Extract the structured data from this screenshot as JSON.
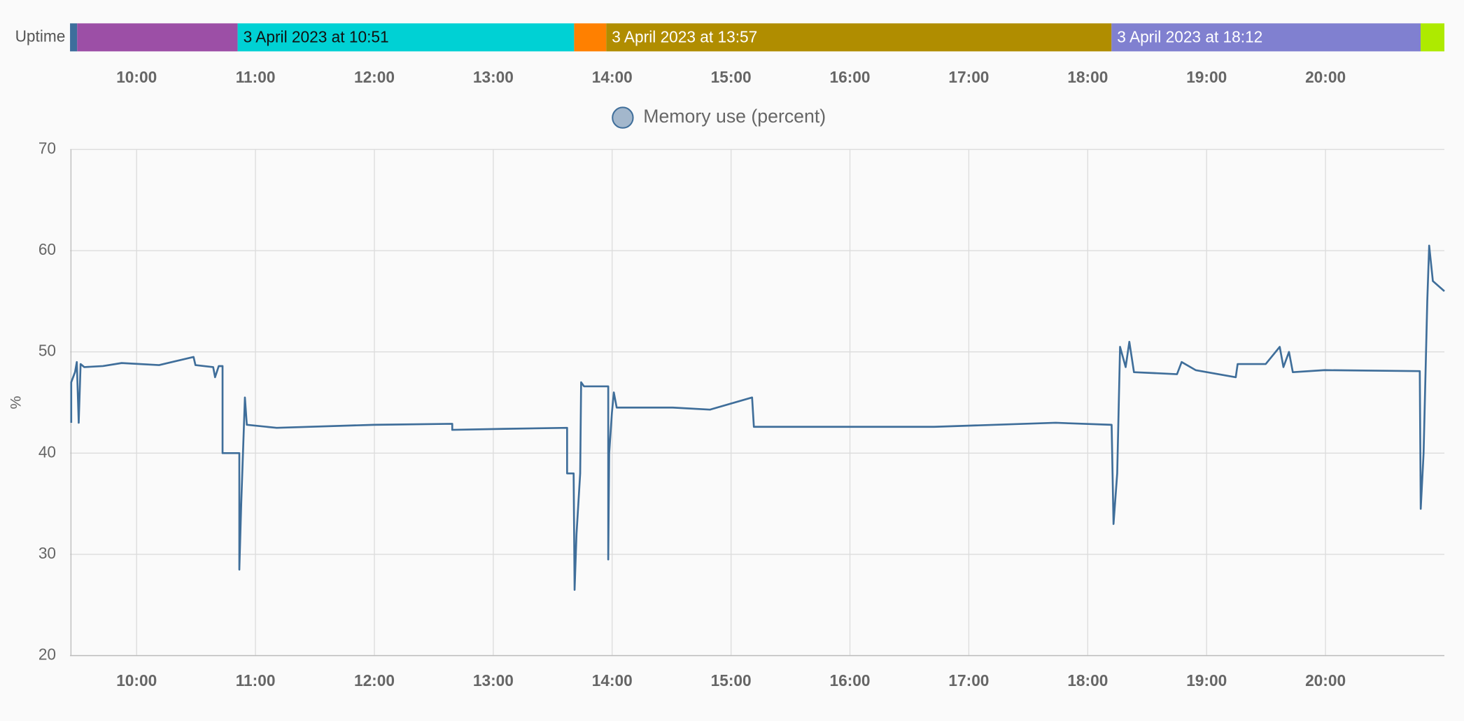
{
  "timeline": {
    "label": "Uptime",
    "xlim": [
      9.44,
      21.0
    ],
    "xticks": [
      {
        "value": 10,
        "label": "10:00"
      },
      {
        "value": 11,
        "label": "11:00"
      },
      {
        "value": 12,
        "label": "12:00"
      },
      {
        "value": 13,
        "label": "13:00"
      },
      {
        "value": 14,
        "label": "14:00"
      },
      {
        "value": 15,
        "label": "15:00"
      },
      {
        "value": 16,
        "label": "16:00"
      },
      {
        "value": 17,
        "label": "17:00"
      },
      {
        "value": 18,
        "label": "18:00"
      },
      {
        "value": 19,
        "label": "19:00"
      },
      {
        "value": 20,
        "label": "20:00"
      }
    ],
    "segments": [
      {
        "start": 9.44,
        "end": 9.5,
        "color": "#3e6e9c"
      },
      {
        "start": 9.5,
        "end": 10.85,
        "color": "#9c4fa6"
      },
      {
        "start": 10.85,
        "end": 13.68,
        "color": "#00d1d4",
        "label": "3 April 2023 at 10:51",
        "text_color": "#111111"
      },
      {
        "start": 13.68,
        "end": 13.95,
        "color": "#ff8000"
      },
      {
        "start": 13.95,
        "end": 18.2,
        "color": "#b08d00",
        "label": "3 April 2023 at 13:57",
        "text_color": "#ffffff"
      },
      {
        "start": 18.2,
        "end": 20.8,
        "color": "#8080d0",
        "label": "3 April 2023 at 18:12",
        "text_color": "#ffffff"
      },
      {
        "start": 20.8,
        "end": 21.0,
        "color": "#aeea00"
      }
    ]
  },
  "chart_data": {
    "type": "line",
    "y_label": "%",
    "grid": true,
    "xlim": [
      9.44,
      21.0
    ],
    "ylim": [
      20,
      70
    ],
    "yticks": [
      20,
      30,
      40,
      50,
      60,
      70
    ],
    "xticks": [
      {
        "value": 10,
        "label": "10:00"
      },
      {
        "value": 11,
        "label": "11:00"
      },
      {
        "value": 12,
        "label": "12:00"
      },
      {
        "value": 13,
        "label": "13:00"
      },
      {
        "value": 14,
        "label": "14:00"
      },
      {
        "value": 15,
        "label": "15:00"
      },
      {
        "value": 16,
        "label": "16:00"
      },
      {
        "value": 17,
        "label": "17:00"
      },
      {
        "value": 18,
        "label": "18:00"
      },
      {
        "value": 19,
        "label": "19:00"
      },
      {
        "value": 20,
        "label": "20:00"
      }
    ],
    "x": [
      9.45,
      9.45,
      9.482,
      9.497,
      9.513,
      9.529,
      9.56,
      9.717,
      9.874,
      10.189,
      10.479,
      10.495,
      10.644,
      10.66,
      10.691,
      10.723,
      10.723,
      10.864,
      10.864,
      10.88,
      10.911,
      10.927,
      11.178,
      11.995,
      12.655,
      12.655,
      13.095,
      13.621,
      13.621,
      13.676,
      13.684,
      13.7,
      13.731,
      13.739,
      13.763,
      13.967,
      13.967,
      13.975,
      13.998,
      14.014,
      14.038,
      14.509,
      14.823,
      15.177,
      15.192,
      15.923,
      16.708,
      17.73,
      18.201,
      18.217,
      18.248,
      18.272,
      18.319,
      18.35,
      18.389,
      18.751,
      18.79,
      18.908,
      19.245,
      19.261,
      19.497,
      19.615,
      19.646,
      19.693,
      19.725,
      19.992,
      20.793,
      20.801,
      20.825,
      20.856,
      20.872,
      20.903,
      21.0
    ],
    "series": [
      {
        "name": "Memory use (percent)",
        "color": "#3f6e9a",
        "fill": "#a3b7cc",
        "values": [
          43,
          47,
          48,
          49,
          43,
          48.8,
          48.5,
          48.6,
          48.9,
          48.7,
          49.5,
          48.7,
          48.5,
          47.5,
          48.6,
          48.6,
          40,
          40,
          28.5,
          35,
          45.5,
          42.8,
          42.5,
          42.8,
          42.9,
          42.3,
          42.4,
          42.5,
          38,
          38,
          26.5,
          32,
          38,
          47,
          46.6,
          46.6,
          29.5,
          40,
          44,
          46,
          44.5,
          44.5,
          44.3,
          45.5,
          42.6,
          42.6,
          42.6,
          43,
          42.8,
          33,
          38,
          50.5,
          48.5,
          51,
          48,
          47.8,
          49,
          48.2,
          47.5,
          48.8,
          48.8,
          50.5,
          48.5,
          50,
          48,
          48.2,
          48.1,
          34.5,
          40,
          55,
          60.5,
          57,
          56
        ]
      }
    ]
  }
}
